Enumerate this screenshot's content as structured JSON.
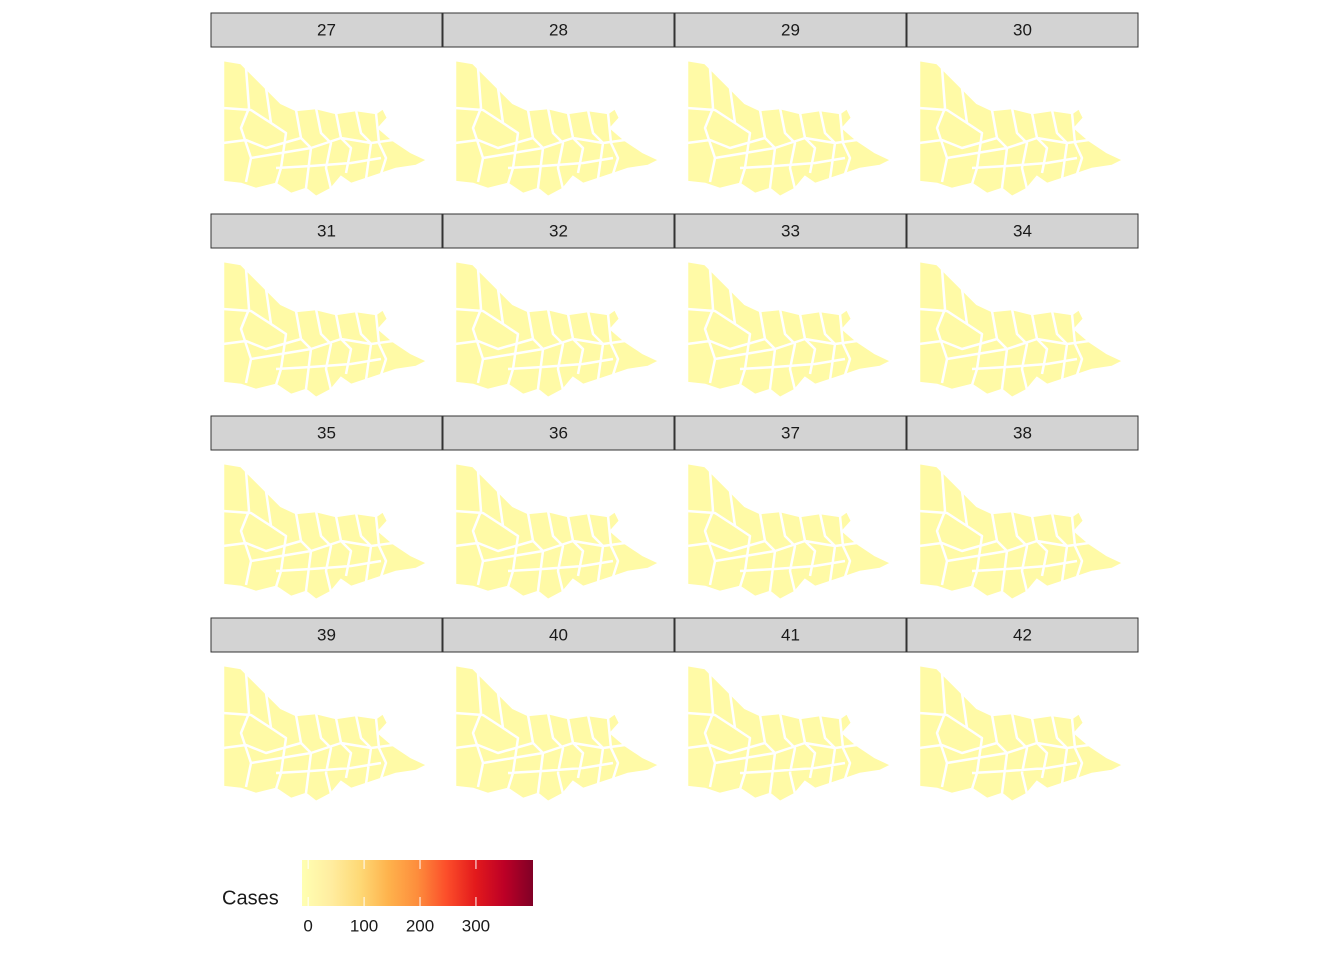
{
  "chart_data": {
    "type": "choropleth-facets",
    "facets": [
      27,
      28,
      29,
      30,
      31,
      32,
      33,
      34,
      35,
      36,
      37,
      38,
      39,
      40,
      41,
      42
    ],
    "legend": {
      "title": "Cases",
      "lim": [
        -11,
        402
      ],
      "ticks": [
        0,
        100,
        200,
        300
      ],
      "colors": [
        "#ffffb2",
        "#ffeda0",
        "#fed976",
        "#feb24c",
        "#fd8d3c",
        "#fc4e2a",
        "#e31a1c",
        "#bd0026",
        "#800026"
      ]
    }
  }
}
